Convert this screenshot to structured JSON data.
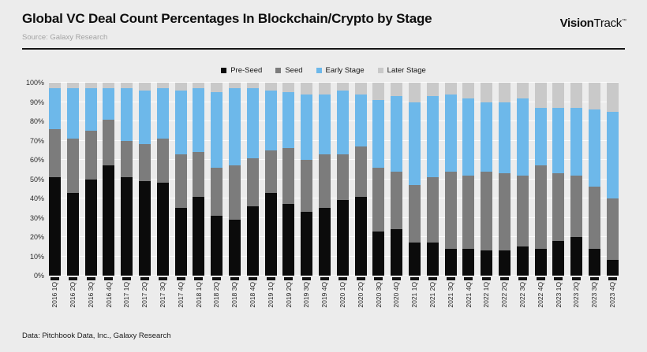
{
  "header": {
    "title": "Global VC Deal Count Percentages In Blockchain/Crypto by Stage",
    "source": "Source: Galaxy Research",
    "logo": {
      "vision": "Vision",
      "track": "Track",
      "tm": "™"
    }
  },
  "footer": {
    "text": "Data: Pitchbook Data, Inc., Galaxy Research"
  },
  "colors": {
    "background": "#ececec",
    "pre_seed": "#0b0b0b",
    "seed": "#7c7c7c",
    "early_stage": "#6db8ea",
    "later_stage": "#c9c9c9",
    "gridline": "#ffffff",
    "divider": "#161616"
  },
  "chart_data": {
    "type": "bar",
    "stacked": true,
    "unit": "percent",
    "title": "Global VC Deal Count Percentages In Blockchain/Crypto by Stage",
    "xlabel": "",
    "ylabel": "",
    "ylim": [
      0,
      100
    ],
    "grid": "horizontal",
    "legend_position": "top-center",
    "y_ticks": [
      "0%",
      "10%",
      "20%",
      "30%",
      "40%",
      "50%",
      "60%",
      "70%",
      "80%",
      "90%",
      "100%"
    ],
    "categories": [
      "2016 1Q",
      "2016 2Q",
      "2016 3Q",
      "2016 4Q",
      "2017 1Q",
      "2017 2Q",
      "2017 3Q",
      "2017 4Q",
      "2018 1Q",
      "2018 2Q",
      "2018 3Q",
      "2018 4Q",
      "2019 1Q",
      "2019 2Q",
      "2019 3Q",
      "2019 4Q",
      "2020 1Q",
      "2020 2Q",
      "2020 3Q",
      "2020 4Q",
      "2021 1Q",
      "2021 2Q",
      "2021 3Q",
      "2021 4Q",
      "2022 1Q",
      "2022 2Q",
      "2022 3Q",
      "2022 4Q",
      "2023 1Q",
      "2023 2Q",
      "2023 3Q",
      "2023 4Q"
    ],
    "series": [
      {
        "name": "Pre-Seed",
        "color": "#0b0b0b",
        "values": [
          51,
          43,
          50,
          57,
          51,
          49,
          48,
          35,
          41,
          31,
          29,
          36,
          43,
          37,
          33,
          35,
          39,
          41,
          23,
          24,
          17,
          17,
          14,
          14,
          13,
          13,
          15,
          14,
          18,
          20,
          14,
          8
        ]
      },
      {
        "name": "Seed",
        "color": "#7c7c7c",
        "values": [
          25,
          28,
          25,
          24,
          19,
          19,
          23,
          28,
          23,
          25,
          28,
          25,
          22,
          29,
          27,
          28,
          24,
          26,
          33,
          30,
          30,
          34,
          40,
          38,
          41,
          40,
          37,
          43,
          35,
          32,
          32,
          32
        ]
      },
      {
        "name": "Early Stage",
        "color": "#6db8ea",
        "values": [
          21,
          26,
          22,
          16,
          27,
          28,
          26,
          33,
          33,
          39,
          40,
          36,
          31,
          29,
          34,
          31,
          33,
          27,
          35,
          39,
          43,
          42,
          40,
          40,
          36,
          37,
          40,
          30,
          34,
          35,
          40,
          45
        ]
      },
      {
        "name": "Later Stage",
        "color": "#c9c9c9",
        "values": [
          3,
          3,
          3,
          3,
          3,
          4,
          3,
          4,
          3,
          5,
          3,
          3,
          4,
          5,
          6,
          6,
          4,
          6,
          9,
          7,
          10,
          7,
          6,
          8,
          10,
          10,
          8,
          13,
          13,
          13,
          14,
          15
        ]
      }
    ]
  }
}
